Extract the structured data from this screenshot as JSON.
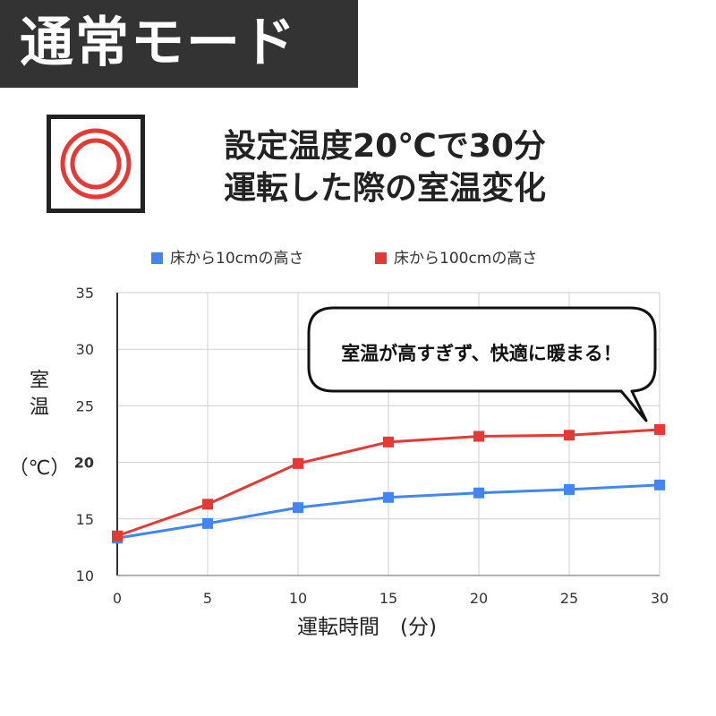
{
  "header": {
    "mode_label": "通常モード"
  },
  "heading": {
    "line1": "設定温度20℃で30分",
    "line2": "運転した際の室温変化"
  },
  "icon": {
    "name": "heater-rings-icon",
    "ring_color": "#e53935"
  },
  "colors": {
    "blue": "#4285f4",
    "red": "#e53935",
    "highlight": "#e53935"
  },
  "callout": {
    "text": "室温が高すぎず、快適に暖まる！"
  },
  "chart_data": {
    "type": "line",
    "x": [
      0,
      5,
      10,
      15,
      20,
      25,
      30
    ],
    "series": [
      {
        "name": "床から10cmの高さ",
        "color": "#4285f4",
        "values": [
          13.3,
          14.6,
          16.0,
          16.9,
          17.3,
          17.6,
          18.0
        ]
      },
      {
        "name": "床から100cmの高さ",
        "color": "#e53935",
        "values": [
          13.5,
          16.3,
          19.9,
          21.8,
          22.3,
          22.4,
          22.9
        ]
      }
    ],
    "xlabel": "運転時間　(分)",
    "ylabel": [
      "室",
      "温",
      "（℃）"
    ],
    "xlim": [
      0,
      30
    ],
    "ylim": [
      10,
      35
    ],
    "xticks": [
      "0",
      "5",
      "10",
      "15",
      "20",
      "25",
      "30"
    ],
    "yticks": [
      "10",
      "15",
      "20",
      "25",
      "30",
      "35"
    ],
    "highlight_ytick": "20",
    "grid": true,
    "legend_position": "top"
  }
}
